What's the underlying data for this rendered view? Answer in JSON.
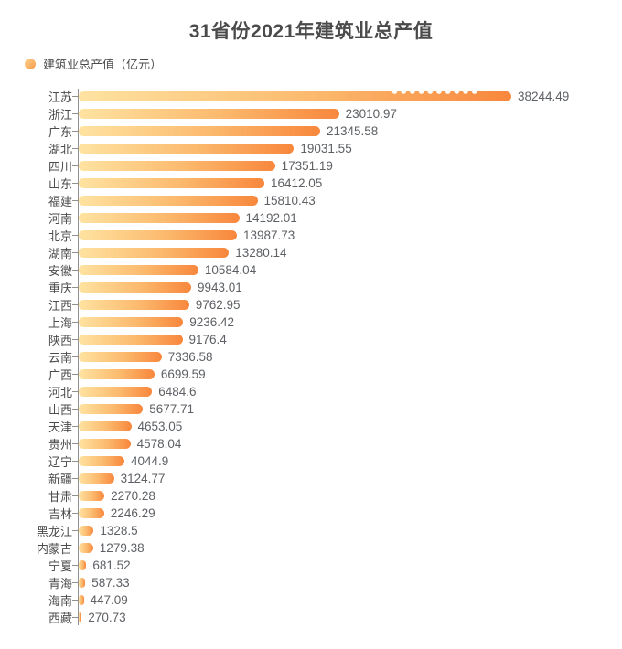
{
  "title": "31省份2021年建筑业总产值",
  "legend": {
    "label": "建筑业总产值（亿元）"
  },
  "colors": {
    "bar_gradient_start": "#ffe3a1",
    "bar_gradient_end": "#f8873c",
    "legend_dot": "#f8994a",
    "axis": "#909090",
    "title_text": "#4a4a4a",
    "category_text": "#4c4c4c",
    "value_text": "#5d6064",
    "background": "#ffffff"
  },
  "chart_data": {
    "type": "bar",
    "orientation": "horizontal",
    "title": "31省份2021年建筑业总产值",
    "xlabel": "",
    "ylabel": "",
    "legend": [
      "建筑业总产值（亿元）"
    ],
    "legend_position": "top-left",
    "grid": false,
    "xlim": [
      0,
      38244.49
    ],
    "series_name": "建筑业总产值（亿元）",
    "categories": [
      "江苏",
      "浙江",
      "广东",
      "湖北",
      "四川",
      "山东",
      "福建",
      "河南",
      "北京",
      "湖南",
      "安徽",
      "重庆",
      "江西",
      "上海",
      "陕西",
      "云南",
      "广西",
      "河北",
      "山西",
      "天津",
      "贵州",
      "辽宁",
      "新疆",
      "甘肃",
      "吉林",
      "黑龙江",
      "内蒙古",
      "宁夏",
      "青海",
      "海南",
      "西藏"
    ],
    "values": [
      38244.49,
      23010.97,
      21345.58,
      19031.55,
      17351.19,
      16412.05,
      15810.43,
      14192.01,
      13987.73,
      13280.14,
      10584.04,
      9943.01,
      9762.95,
      9236.42,
      9176.4,
      7336.58,
      6699.59,
      6484.6,
      5677.71,
      4653.05,
      4578.04,
      4044.9,
      3124.77,
      2270.28,
      2246.29,
      1328.5,
      1279.38,
      681.52,
      587.33,
      447.09,
      270.73
    ],
    "value_labels": [
      "38244.49",
      "23010.97",
      "21345.58",
      "19031.55",
      "17351.19",
      "16412.05",
      "15810.43",
      "14192.01",
      "13987.73",
      "13280.14",
      "10584.04",
      "9943.01",
      "9762.95",
      "9236.42",
      "9176.4",
      "7336.58",
      "6699.59",
      "6484.6",
      "5677.71",
      "4653.05",
      "4578.04",
      "4044.9",
      "3124.77",
      "2270.28",
      "2246.29",
      "1328.5",
      "1279.38",
      "681.52",
      "587.33",
      "447.09",
      "270.73"
    ]
  }
}
